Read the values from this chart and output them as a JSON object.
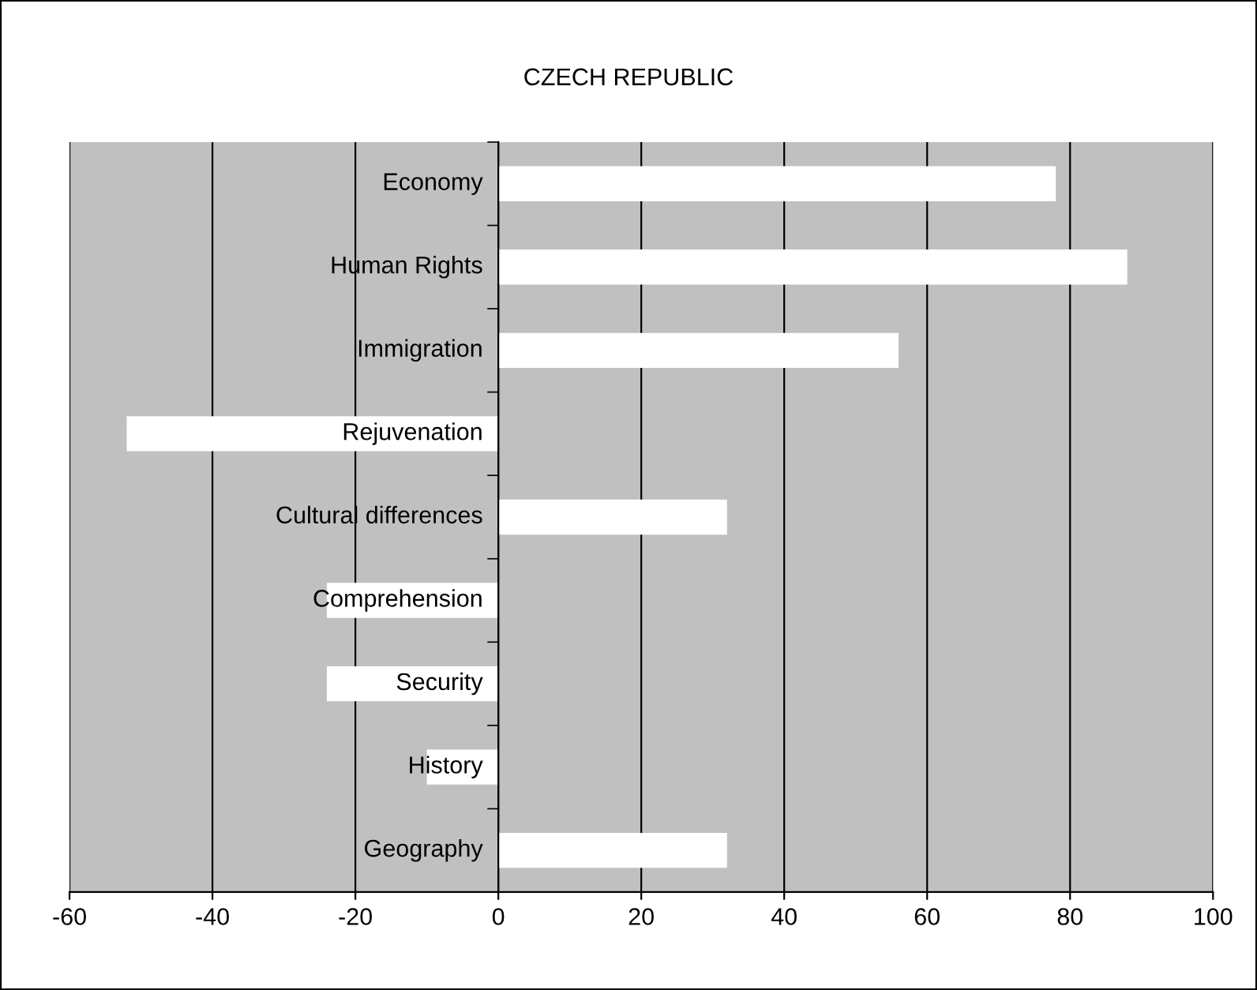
{
  "chart_data": {
    "type": "bar",
    "orientation": "horizontal",
    "title": "CZECH REPUBLIC",
    "categories": [
      "Economy",
      "Human Rights",
      "Immigration",
      "Rejuvenation",
      "Cultural differences",
      "Comprehension",
      "Security",
      "History",
      "Geography"
    ],
    "values": [
      78,
      88,
      56,
      -52,
      32,
      -24,
      -24,
      -10,
      32
    ],
    "color": "#ffffff",
    "xlim": [
      -60,
      100
    ],
    "xticks": [
      -60,
      -40,
      -20,
      0,
      20,
      40,
      60,
      80,
      100
    ],
    "grid": "x",
    "legend": false
  }
}
